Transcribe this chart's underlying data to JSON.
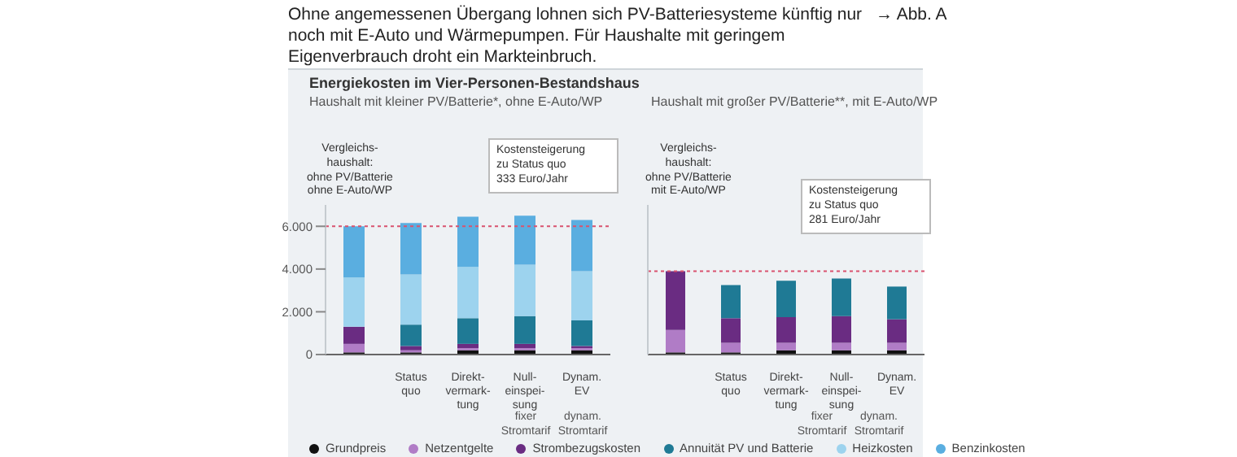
{
  "chart_data": [
    {
      "type": "bar",
      "title": "Energiekosten im Vier-Personen-Bestandshaus",
      "subtitle": "Haushalt mit kleiner PV/Batterie*, ohne E-Auto/WP",
      "stacked": true,
      "categories": [
        null,
        "Status\nquo",
        "Direkt-\nvermark-\ntung",
        "Null-\neinspei-\nsung",
        "Dynam.\nEV"
      ],
      "series": [
        {
          "name": "Grundpreis",
          "color": "#111111",
          "values": [
            100,
            100,
            200,
            200,
            200
          ]
        },
        {
          "name": "Netzentgelte",
          "color": "#b07cc6",
          "values": [
            400,
            100,
            100,
            100,
            100
          ]
        },
        {
          "name": "Strombezugskosten",
          "color": "#6a2c82",
          "values": [
            800,
            200,
            200,
            200,
            100
          ]
        },
        {
          "name": "Annuität PV und Batterie",
          "color": "#1f7a95",
          "values": [
            0,
            1000,
            1200,
            1300,
            1200
          ]
        },
        {
          "name": "Heizkosten",
          "color": "#9dd3ee",
          "values": [
            2300,
            2350,
            2400,
            2400,
            2300
          ]
        },
        {
          "name": "Benzinkosten",
          "color": "#5aaee0",
          "values": [
            2400,
            2400,
            2350,
            2300,
            2400
          ]
        }
      ],
      "ylim": [
        0,
        7000
      ],
      "yticks": [
        {
          "value": 0,
          "label": "0"
        },
        {
          "value": 2000,
          "label": "2.000"
        },
        {
          "value": 4000,
          "label": "4.000"
        },
        {
          "value": 6000,
          "label": "6.000"
        }
      ],
      "ref_lines": [
        {
          "axis": "y",
          "value": 6000,
          "color": "#d9536f",
          "line_style": "dotted"
        }
      ],
      "legend": "bottom",
      "annotations": [
        "Ohne angemessenen Übergang lohnen sich PV-Batteriesysteme künftig nur noch mit E-Auto und Wärmepumpen. Für Haushalte mit geringem Eigenverbrauch droht ein Markteinbruch.",
        "→ Abb. A",
        "Vergleichs-\nhaushalt:\nohne PV/Batterie\nohne E-Auto/WP",
        "Kostensteigerung\nzu Status quo\n333 Euro/Jahr",
        "fixer\nStromtarif",
        "dynam.\nStromtarif"
      ]
    },
    {
      "type": "bar",
      "subtitle": "Haushalt mit großer PV/Batterie**, mit E-Auto/WP",
      "stacked": true,
      "categories": [
        null,
        "Status\nquo",
        "Direkt-\nvermark-\ntung",
        "Null-\neinspei-\nsung",
        "Dynam.\nEV"
      ],
      "series": [
        {
          "color": "#111111",
          "values": [
            100,
            100,
            200,
            200,
            200
          ]
        },
        {
          "color": "#b07cc6",
          "values": [
            1050,
            450,
            350,
            350,
            350
          ]
        },
        {
          "color": "#6a2c82",
          "values": [
            2750,
            1150,
            1200,
            1250,
            1100
          ]
        },
        {
          "color": "#1f7a95",
          "values": [
            0,
            1550,
            1700,
            1760,
            1530
          ]
        }
      ],
      "ylim": [
        0,
        7000
      ],
      "tick_labels": "x",
      "ref_lines": [
        {
          "axis": "y",
          "value": 3900,
          "color": "#d9536f",
          "line_style": "dotted"
        }
      ],
      "annotations": [
        "Vergleichs-\nhaushalt:\nohne PV/Batterie\nmit E-Auto/WP",
        "Kostensteigerung\nzu Status quo\n281 Euro/Jahr",
        "fixer\nStromtarif",
        "dynam.\nStromtarif"
      ]
    }
  ]
}
